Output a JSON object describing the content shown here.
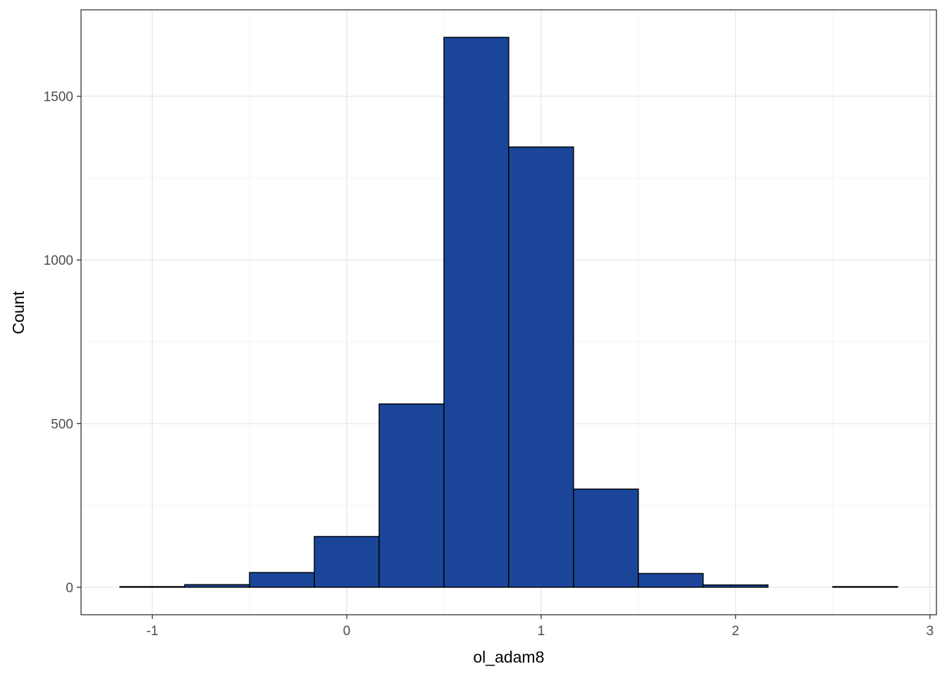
{
  "chart_data": {
    "type": "bar",
    "subtype": "histogram",
    "title": "",
    "xlabel": "ol_adam8",
    "ylabel": "Count",
    "bin_width": 0.3333,
    "bins": [
      {
        "x0": -1.1667,
        "x1": -0.8333,
        "count": 2
      },
      {
        "x0": -0.8333,
        "x1": -0.5,
        "count": 8
      },
      {
        "x0": -0.5,
        "x1": -0.1667,
        "count": 45
      },
      {
        "x0": -0.1667,
        "x1": 0.1667,
        "count": 155
      },
      {
        "x0": 0.1667,
        "x1": 0.5,
        "count": 560
      },
      {
        "x0": 0.5,
        "x1": 0.8333,
        "count": 1680
      },
      {
        "x0": 0.8333,
        "x1": 1.1667,
        "count": 1345
      },
      {
        "x0": 1.1667,
        "x1": 1.5,
        "count": 300
      },
      {
        "x0": 1.5,
        "x1": 1.8333,
        "count": 42
      },
      {
        "x0": 1.8333,
        "x1": 2.1667,
        "count": 7
      },
      {
        "x0": 2.1667,
        "x1": 2.5,
        "count": 0
      },
      {
        "x0": 2.5,
        "x1": 2.8333,
        "count": 2
      }
    ],
    "xlim": [
      -1.3667,
      3.0333
    ],
    "ylim": [
      -84,
      1764
    ],
    "x_ticks": [
      -1,
      0,
      1,
      2,
      3
    ],
    "x_tick_labels": [
      "-1",
      "0",
      "1",
      "2",
      "3"
    ],
    "y_ticks": [
      0,
      500,
      1000,
      1500
    ],
    "y_tick_labels": [
      "0",
      "500",
      "1000",
      "1500"
    ],
    "x_minor_ticks": [
      -0.5,
      0.5,
      1.5,
      2.5
    ],
    "y_minor_ticks": [
      250,
      750,
      1250
    ],
    "grid": true,
    "legend": "none",
    "colors": {
      "bar_fill": "#1A4599",
      "bar_outline": "#000000",
      "background": "#FFFFFF"
    }
  }
}
